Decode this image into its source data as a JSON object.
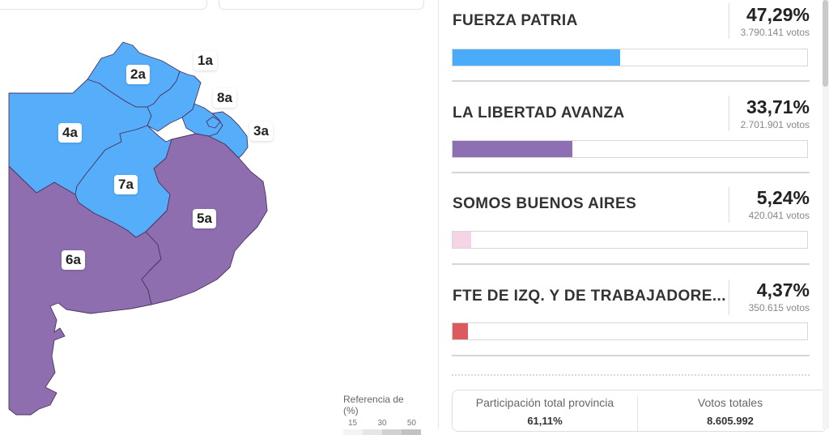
{
  "map": {
    "sections": [
      {
        "id": "1a",
        "label": "1a"
      },
      {
        "id": "2a",
        "label": "2a"
      },
      {
        "id": "3a",
        "label": "3a"
      },
      {
        "id": "4a",
        "label": "4a"
      },
      {
        "id": "5a",
        "label": "5a"
      },
      {
        "id": "6a",
        "label": "6a"
      },
      {
        "id": "7a",
        "label": "7a"
      },
      {
        "id": "8a",
        "label": "8a"
      }
    ],
    "colors": {
      "fuerza_patria": "#56aefa",
      "libertad_avanza": "#8e6eae",
      "border": "#4a3560"
    },
    "legend": {
      "title": "Referencia de (%)",
      "ticks": [
        "15",
        "30",
        "50"
      ],
      "scale_colors": [
        "#f3f3f3",
        "#e6e6e6",
        "#d2d2d2",
        "#c2c2c2"
      ]
    }
  },
  "results": {
    "parties": [
      {
        "name": "FUERZA PATRIA",
        "percent": "47,29%",
        "votes": "3.790.141 votos",
        "share": 47.29,
        "color": "#4aabfb"
      },
      {
        "name": "LA LIBERTAD AVANZA",
        "percent": "33,71%",
        "votes": "2.701.901 votos",
        "share": 33.71,
        "color": "#8f6fb3"
      },
      {
        "name": "SOMOS BUENOS AIRES",
        "percent": "5,24%",
        "votes": "420.041 votos",
        "share": 5.24,
        "color": "#f5d4e6"
      },
      {
        "name": "FTE DE IZQ. Y DE TRABAJADORE...",
        "percent": "4,37%",
        "votes": "350.615 votos",
        "share": 4.37,
        "color": "#dc5a5e"
      }
    ]
  },
  "summary": {
    "participation_label": "Participación total provincia",
    "participation_value": "61,11%",
    "total_votes_label": "Votos totales",
    "total_votes_value": "8.605.992"
  }
}
